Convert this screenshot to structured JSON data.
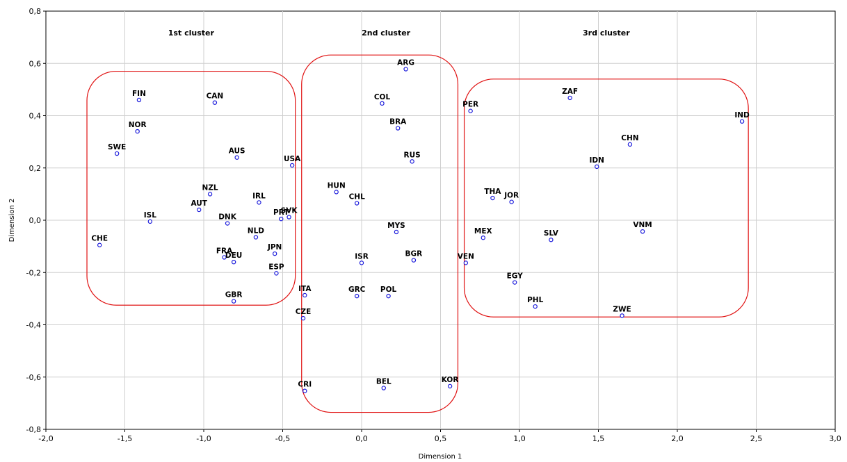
{
  "chart_data": {
    "type": "scatter",
    "xlabel": "Dimension 1",
    "ylabel": "Dimension 2",
    "xlim": [
      -2.0,
      3.0
    ],
    "ylim": [
      -0.8,
      0.8
    ],
    "x_ticks": [
      "-2,0",
      "-1,5",
      "-1,0",
      "-0,5",
      "0,0",
      "0,5",
      "1,0",
      "1,5",
      "2,0",
      "2,5",
      "3,0"
    ],
    "y_ticks": [
      "0,8",
      "0,6",
      "0,4",
      "0,2",
      "0,0",
      "-0,2",
      "-0,4",
      "-0,6",
      "-0,8"
    ],
    "grid": true,
    "point_color": "#1a1adb",
    "cluster_color": "#e01010",
    "points": [
      {
        "label": "FIN",
        "x": -1.41,
        "y": 0.46
      },
      {
        "label": "CAN",
        "x": -0.93,
        "y": 0.45
      },
      {
        "label": "NOR",
        "x": -1.42,
        "y": 0.34
      },
      {
        "label": "SWE",
        "x": -1.55,
        "y": 0.255
      },
      {
        "label": "AUS",
        "x": -0.79,
        "y": 0.24
      },
      {
        "label": "USA",
        "x": -0.44,
        "y": 0.21
      },
      {
        "label": "NZL",
        "x": -0.96,
        "y": 0.1
      },
      {
        "label": "AUT",
        "x": -1.03,
        "y": 0.04
      },
      {
        "label": "IRL",
        "x": -0.65,
        "y": 0.068
      },
      {
        "label": "ISL",
        "x": -1.34,
        "y": -0.005
      },
      {
        "label": "DNK",
        "x": -0.85,
        "y": -0.012
      },
      {
        "label": "PRT",
        "x": -0.51,
        "y": 0.005
      },
      {
        "label": "SVK",
        "x": -0.46,
        "y": 0.012
      },
      {
        "label": "NLD",
        "x": -0.67,
        "y": -0.065
      },
      {
        "label": "CHE",
        "x": -1.66,
        "y": -0.095
      },
      {
        "label": "JPN",
        "x": -0.55,
        "y": -0.128
      },
      {
        "label": "FRA",
        "x": -0.87,
        "y": -0.142
      },
      {
        "label": "DEU",
        "x": -0.81,
        "y": -0.16
      },
      {
        "label": "ESP",
        "x": -0.54,
        "y": -0.203
      },
      {
        "label": "GBR",
        "x": -0.81,
        "y": -0.31
      },
      {
        "label": "ARG",
        "x": 0.28,
        "y": 0.578
      },
      {
        "label": "COL",
        "x": 0.13,
        "y": 0.447
      },
      {
        "label": "BRA",
        "x": 0.23,
        "y": 0.352
      },
      {
        "label": "RUS",
        "x": 0.32,
        "y": 0.225
      },
      {
        "label": "HUN",
        "x": -0.16,
        "y": 0.108
      },
      {
        "label": "CHL",
        "x": -0.03,
        "y": 0.065
      },
      {
        "label": "MYS",
        "x": 0.22,
        "y": -0.045
      },
      {
        "label": "ISR",
        "x": 0.0,
        "y": -0.163
      },
      {
        "label": "BGR",
        "x": 0.33,
        "y": -0.153
      },
      {
        "label": "ITA",
        "x": -0.36,
        "y": -0.287
      },
      {
        "label": "GRC",
        "x": -0.03,
        "y": -0.29
      },
      {
        "label": "POL",
        "x": 0.17,
        "y": -0.29
      },
      {
        "label": "CZE",
        "x": -0.37,
        "y": -0.375
      },
      {
        "label": "BEL",
        "x": 0.14,
        "y": -0.642
      },
      {
        "label": "KOR",
        "x": 0.56,
        "y": -0.635
      },
      {
        "label": "CRI",
        "x": -0.36,
        "y": -0.653
      },
      {
        "label": "PER",
        "x": 0.69,
        "y": 0.418
      },
      {
        "label": "ZAF",
        "x": 1.32,
        "y": 0.468
      },
      {
        "label": "IND",
        "x": 2.41,
        "y": 0.378
      },
      {
        "label": "CHN",
        "x": 1.7,
        "y": 0.29
      },
      {
        "label": "IDN",
        "x": 1.49,
        "y": 0.205
      },
      {
        "label": "THA",
        "x": 0.83,
        "y": 0.085
      },
      {
        "label": "JOR",
        "x": 0.95,
        "y": 0.07
      },
      {
        "label": "MEX",
        "x": 0.77,
        "y": -0.067
      },
      {
        "label": "SLV",
        "x": 1.2,
        "y": -0.075
      },
      {
        "label": "VNM",
        "x": 1.78,
        "y": -0.043
      },
      {
        "label": "VEN",
        "x": 0.66,
        "y": -0.163
      },
      {
        "label": "EGY",
        "x": 0.97,
        "y": -0.238
      },
      {
        "label": "PHL",
        "x": 1.1,
        "y": -0.33
      },
      {
        "label": "ZWE",
        "x": 1.65,
        "y": -0.365
      }
    ],
    "clusters": [
      {
        "name": "1st cluster",
        "x_range": [
          -1.74,
          -0.42
        ],
        "y_range": [
          -0.325,
          0.57
        ]
      },
      {
        "name": "2nd cluster",
        "x_range": [
          -0.38,
          0.61
        ],
        "y_range": [
          -0.735,
          0.632
        ]
      },
      {
        "name": "3rd cluster",
        "x_range": [
          0.65,
          2.45
        ],
        "y_range": [
          -0.37,
          0.54
        ]
      }
    ]
  }
}
